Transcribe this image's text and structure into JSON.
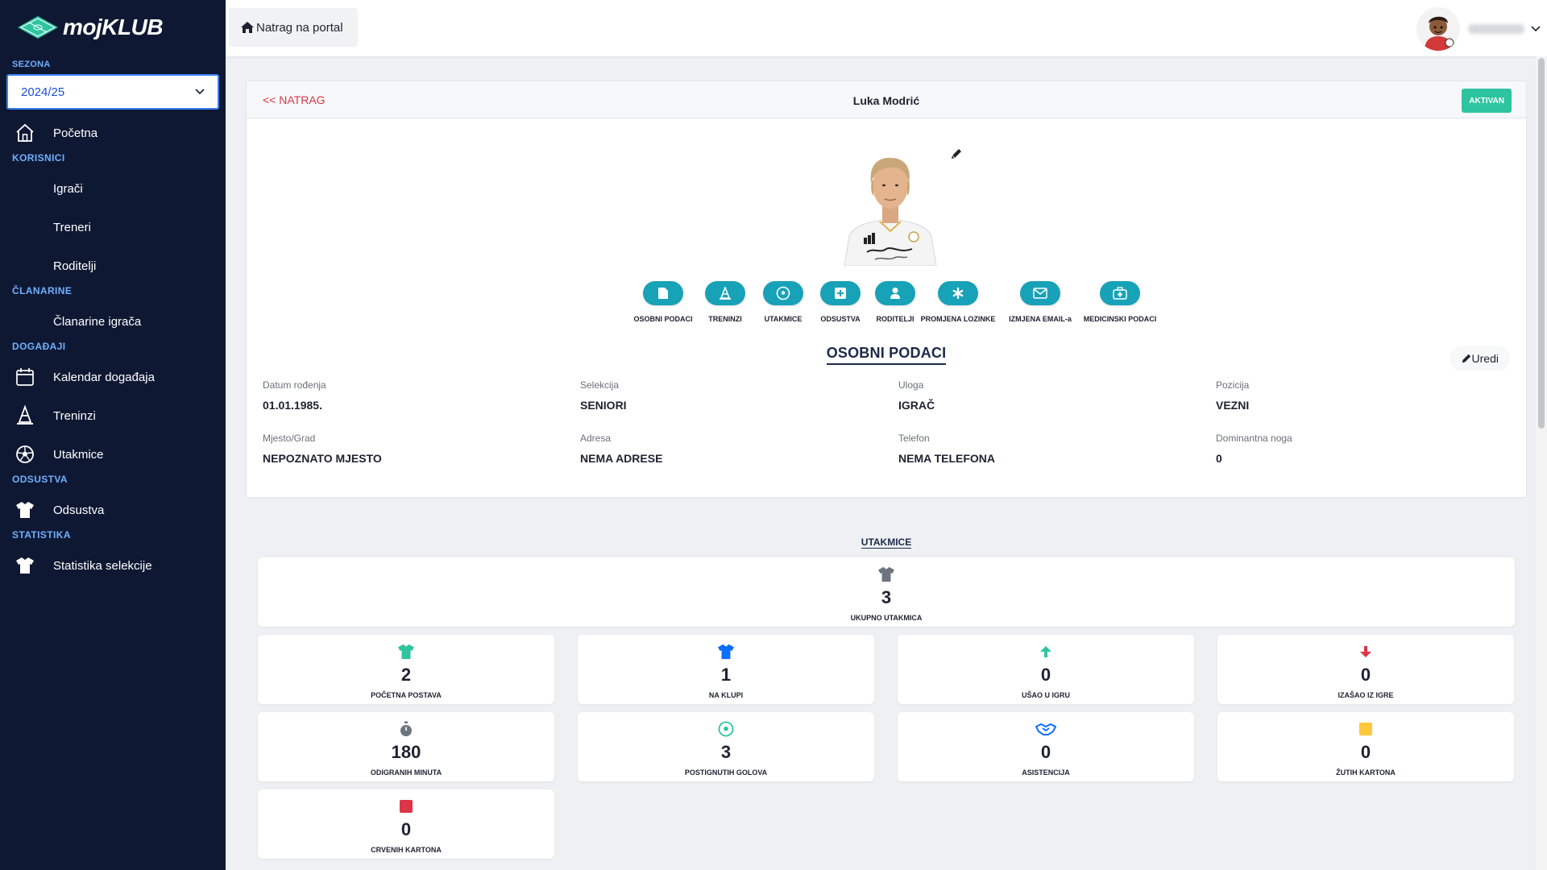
{
  "sidebar": {
    "logo_text": "mojKLUB",
    "season_label": "SEZONA",
    "season_value": "2024/25",
    "sections": {
      "korisnici": "KORISNICI",
      "clanarine": "ČLANARINE",
      "dogadaji": "DOGAĐAJI",
      "odsustva": "ODSUSTVA",
      "statistika": "STATISTIKA"
    },
    "items": {
      "pocetna": "Početna",
      "igraci": "Igrači",
      "treneri": "Treneri",
      "roditelji": "Roditelji",
      "clanarine_igraca": "Članarine igrača",
      "kalendar": "Kalendar događaja",
      "treninzi": "Treninzi",
      "utakmice": "Utakmice",
      "odsustva": "Odsustva",
      "statistika_selekcije": "Statistika selekcije"
    }
  },
  "topbar": {
    "back_to_portal": "Natrag na portal"
  },
  "profile": {
    "back_label": "<< NATRAG",
    "name": "Luka Modrić",
    "status": "AKTIVAN",
    "tabs": [
      "OSOBNI PODACI",
      "TRENINZI",
      "UTAKMICE",
      "ODSUSTVA",
      "RODITELJI",
      "PROMJENA LOZINKE",
      "IZMJENA EMAIL-a",
      "MEDICINSKI PODACI"
    ],
    "section_title": "OSOBNI PODACI",
    "edit_label": "Uredi",
    "fields": [
      {
        "label": "Datum rođenja",
        "value": "01.01.1985."
      },
      {
        "label": "Selekcija",
        "value": "SENIORI"
      },
      {
        "label": "Uloga",
        "value": "IGRAČ"
      },
      {
        "label": "Pozicija",
        "value": "VEZNI"
      },
      {
        "label": "Mjesto/Grad",
        "value": "NEPOZNATO MJESTO"
      },
      {
        "label": "Adresa",
        "value": "NEMA ADRESE"
      },
      {
        "label": "Telefon",
        "value": "NEMA TELEFONA"
      },
      {
        "label": "Dominantna noga",
        "value": "0"
      }
    ]
  },
  "stats": {
    "title": "UTAKMICE",
    "total": {
      "value": "3",
      "label": "UKUPNO UTAKMICA",
      "icon": "shirt-icon",
      "color": "#6c757d"
    },
    "items": [
      {
        "value": "2",
        "label": "POČETNA POSTAVA",
        "icon": "shirt-icon",
        "color": "#2ec4a0"
      },
      {
        "value": "1",
        "label": "NA KLUPI",
        "icon": "shirt-icon",
        "color": "#0d6efd"
      },
      {
        "value": "0",
        "label": "UŠAO U IGRU",
        "icon": "arrow-up-icon",
        "color": "#2ec4a0"
      },
      {
        "value": "0",
        "label": "IZAŠAO IZ IGRE",
        "icon": "arrow-down-icon",
        "color": "#dc3545"
      },
      {
        "value": "180",
        "label": "ODIGRANIH MINUTA",
        "icon": "stopwatch-icon",
        "color": "#6c757d"
      },
      {
        "value": "3",
        "label": "POSTIGNUTIH GOLOVA",
        "icon": "football-icon",
        "color": "#2ec4a0"
      },
      {
        "value": "0",
        "label": "ASISTENCIJA",
        "icon": "handshake-icon",
        "color": "#0d6efd"
      },
      {
        "value": "0",
        "label": "ŽUTIH KARTONA",
        "icon": "yellow-card-icon",
        "color": "#ffc83d"
      },
      {
        "value": "0",
        "label": "CRVENIH KARTONA",
        "icon": "red-card-icon",
        "color": "#dc3545"
      }
    ]
  }
}
